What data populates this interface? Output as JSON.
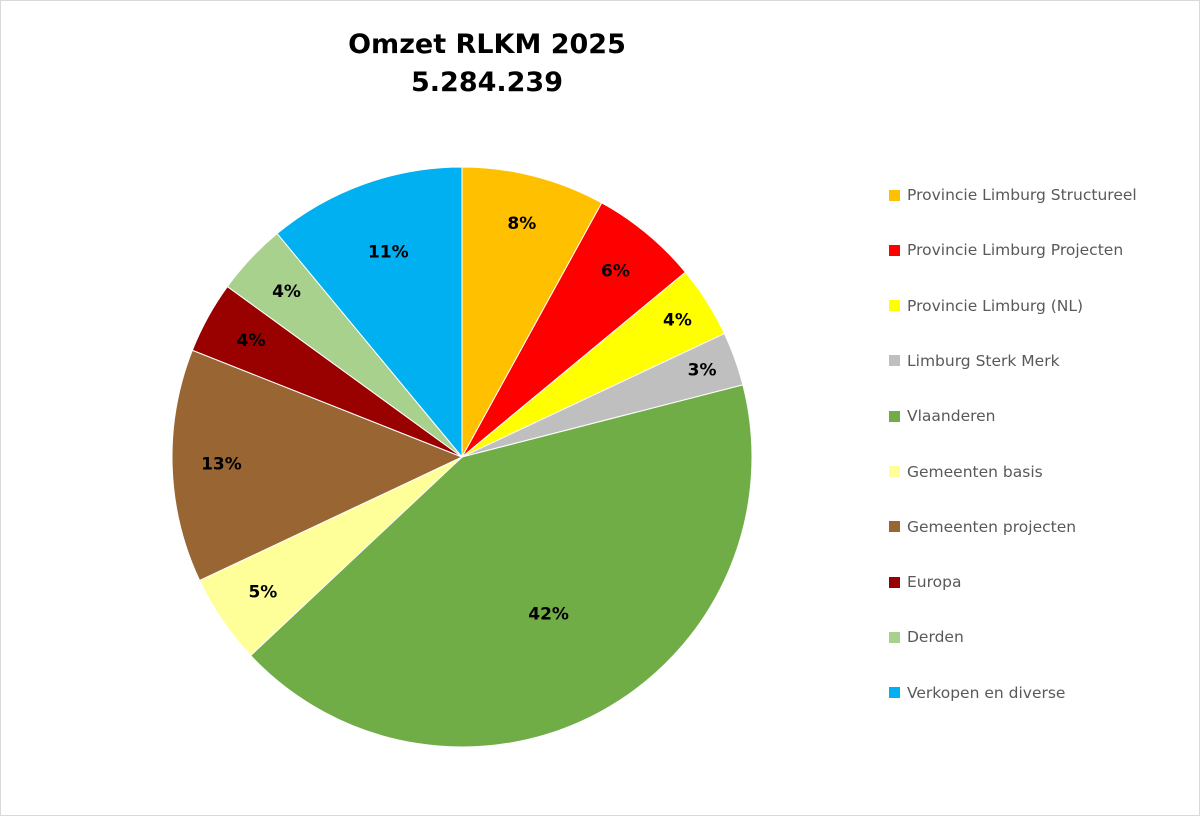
{
  "chart_data": {
    "type": "pie",
    "title": "Omzet RLKM 2025",
    "subtitle": "5.284.239",
    "legend_position": "right",
    "slices": [
      {
        "name": "Provincie Limburg Structureel",
        "value": 8,
        "label": "8%",
        "color": "#FFC000"
      },
      {
        "name": "Provincie Limburg Projecten",
        "value": 6,
        "label": "6%",
        "color": "#FF0000"
      },
      {
        "name": "Provincie Limburg (NL)",
        "value": 4,
        "label": "4%",
        "color": "#FFFF00"
      },
      {
        "name": "Limburg Sterk Merk",
        "value": 3,
        "label": "3%",
        "color": "#BFBFBF"
      },
      {
        "name": "Vlaanderen",
        "value": 42,
        "label": "42%",
        "color": "#70AD47"
      },
      {
        "name": "Gemeenten basis",
        "value": 5,
        "label": "5%",
        "color": "#FFFF99"
      },
      {
        "name": "Gemeenten projecten",
        "value": 13,
        "label": "13%",
        "color": "#996633"
      },
      {
        "name": "Europa",
        "value": 4,
        "label": "4%",
        "color": "#990000"
      },
      {
        "name": "Derden",
        "value": 4,
        "label": "4%",
        "color": "#A9D18E"
      },
      {
        "name": "Verkopen en diverse",
        "value": 11,
        "label": "11%",
        "color": "#00B0F0"
      }
    ]
  }
}
